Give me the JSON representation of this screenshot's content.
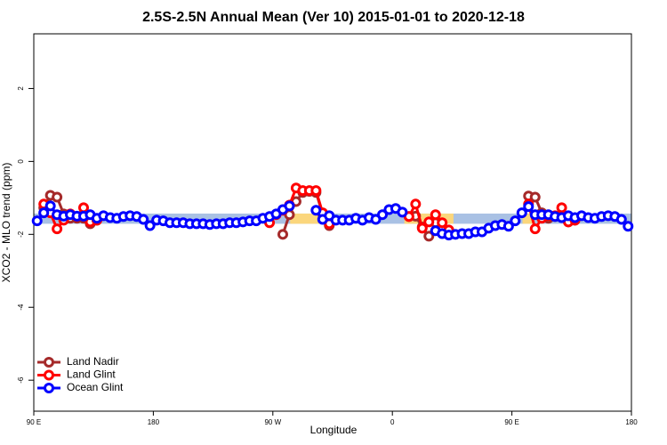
{
  "chart_data": {
    "type": "line",
    "title": "2.5S-2.5N Annual Mean (Ver 10)   2015-01-01 to 2020-12-18",
    "x_label": "Longitude",
    "y_label": "XCO2 - MLO trend (ppm)",
    "xlim": [
      90,
      540
    ],
    "ylim": [
      -6.85,
      3.5
    ],
    "xticks": [
      {
        "value": 90,
        "label": "90 E"
      },
      {
        "value": 180,
        "label": "180"
      },
      {
        "value": 270,
        "label": "90 W"
      },
      {
        "value": 360,
        "label": "0"
      },
      {
        "value": 450,
        "label": "90 E"
      },
      {
        "value": 540,
        "label": "180"
      }
    ],
    "yticks": [
      -6,
      -4,
      -2,
      0,
      2
    ],
    "legend": "lower left",
    "bands": [
      {
        "color": "#a9c1e4",
        "x": [
          90,
          540
        ],
        "y": [
          -1.71,
          -1.43
        ]
      },
      {
        "color": "#fbd67c",
        "x": [
          283,
          310
        ],
        "y": [
          -1.71,
          -1.43
        ]
      },
      {
        "color": "#fbd67c",
        "x": [
          369,
          406
        ],
        "y": [
          -1.71,
          -1.43
        ]
      },
      {
        "color": "#fbd67c",
        "x": [
          458,
          466
        ],
        "y": [
          -1.71,
          -1.43
        ]
      }
    ],
    "x": [
      92.5,
      97.5,
      102.5,
      107.5,
      112.5,
      117.5,
      122.5,
      127.5,
      132.5,
      137.5,
      142.5,
      147.5,
      152.5,
      157.5,
      162.5,
      167.5,
      172.5,
      177.5,
      182.5,
      187.5,
      192.5,
      197.5,
      202.5,
      207.5,
      212.5,
      217.5,
      222.5,
      227.5,
      232.5,
      237.5,
      242.5,
      247.5,
      252.5,
      257.5,
      262.5,
      267.5,
      272.5,
      277.5,
      282.5,
      287.5,
      292.5,
      297.5,
      302.5,
      307.5,
      312.5,
      317.5,
      322.5,
      327.5,
      332.5,
      337.5,
      342.5,
      347.5,
      352.5,
      357.5,
      362.5,
      367.5,
      372.5,
      377.5,
      382.5,
      387.5,
      392.5,
      397.5,
      402.5,
      407.5,
      412.5,
      417.5,
      422.5,
      427.5,
      432.5,
      437.5,
      442.5,
      447.5,
      452.5,
      457.5,
      462.5,
      467.5,
      472.5,
      477.5,
      482.5,
      487.5,
      492.5,
      497.5,
      502.5,
      507.5,
      512.5,
      517.5,
      522.5,
      527.5,
      532.5,
      537.5
    ],
    "series": [
      {
        "name": "Land Nadir",
        "color": "#a52a2a",
        "values": [
          null,
          -1.27,
          -0.93,
          -0.98,
          -1.44,
          -1.56,
          -1.56,
          -1.56,
          -1.71,
          -1.61,
          null,
          null,
          null,
          null,
          null,
          null,
          null,
          null,
          null,
          null,
          null,
          null,
          null,
          null,
          null,
          null,
          null,
          null,
          null,
          null,
          null,
          null,
          null,
          null,
          null,
          null,
          null,
          -2.0,
          -1.46,
          -1.1,
          -0.85,
          -0.82,
          -0.85,
          -1.44,
          -1.76,
          null,
          null,
          null,
          null,
          null,
          null,
          null,
          null,
          null,
          null,
          null,
          -1.51,
          -1.5,
          -1.8,
          -2.05,
          -1.68,
          null,
          null,
          null,
          null,
          null,
          null,
          null,
          null,
          null,
          null,
          null,
          null,
          null,
          -0.95,
          -0.98,
          -1.41,
          -1.56,
          -1.51,
          -1.51,
          -1.66,
          -1.61,
          null,
          null,
          null,
          null,
          null,
          null,
          null,
          null
        ]
      },
      {
        "name": "Land Glint",
        "color": "#ff0000",
        "values": [
          null,
          -1.17,
          -1.41,
          -1.85,
          -1.61,
          -1.44,
          -1.51,
          -1.27,
          -1.66,
          -1.61,
          null,
          null,
          null,
          null,
          null,
          null,
          null,
          null,
          null,
          null,
          null,
          null,
          null,
          null,
          null,
          null,
          null,
          null,
          null,
          null,
          null,
          null,
          null,
          null,
          null,
          -1.68,
          -1.46,
          -1.34,
          -1.2,
          -0.73,
          -0.8,
          -0.8,
          -0.8,
          -1.41,
          -1.71,
          null,
          null,
          null,
          null,
          null,
          null,
          null,
          null,
          null,
          null,
          null,
          -1.51,
          -1.17,
          -1.83,
          -1.66,
          -1.46,
          -1.68,
          -1.88,
          null,
          null,
          null,
          null,
          null,
          null,
          null,
          null,
          null,
          null,
          null,
          -1.17,
          -1.85,
          -1.56,
          -1.49,
          -1.49,
          -1.27,
          -1.66,
          -1.61,
          null,
          null,
          null,
          null,
          null,
          null,
          null,
          null
        ]
      },
      {
        "name": "Ocean Glint",
        "color": "#0000ff",
        "values": [
          -1.63,
          -1.41,
          -1.22,
          -1.46,
          -1.5,
          -1.46,
          -1.5,
          -1.5,
          -1.46,
          -1.56,
          -1.49,
          -1.54,
          -1.56,
          -1.51,
          -1.49,
          -1.51,
          -1.59,
          -1.76,
          -1.61,
          -1.63,
          -1.68,
          -1.68,
          -1.68,
          -1.71,
          -1.71,
          -1.71,
          -1.73,
          -1.71,
          -1.71,
          -1.68,
          -1.68,
          -1.66,
          -1.63,
          -1.63,
          -1.56,
          -1.51,
          -1.44,
          -1.32,
          -1.22,
          null,
          null,
          null,
          -1.34,
          -1.59,
          -1.49,
          -1.61,
          -1.61,
          -1.61,
          -1.56,
          -1.61,
          -1.54,
          -1.59,
          -1.46,
          -1.32,
          -1.29,
          -1.39,
          null,
          null,
          null,
          null,
          -1.9,
          -1.98,
          -2.02,
          -2.0,
          -1.98,
          -1.98,
          -1.93,
          -1.93,
          -1.83,
          -1.76,
          -1.73,
          -1.78,
          -1.63,
          -1.41,
          -1.24,
          -1.46,
          -1.46,
          -1.46,
          -1.51,
          -1.54,
          -1.49,
          -1.54,
          -1.49,
          -1.54,
          -1.56,
          -1.51,
          -1.49,
          -1.51,
          -1.59,
          -1.78
        ]
      }
    ]
  }
}
